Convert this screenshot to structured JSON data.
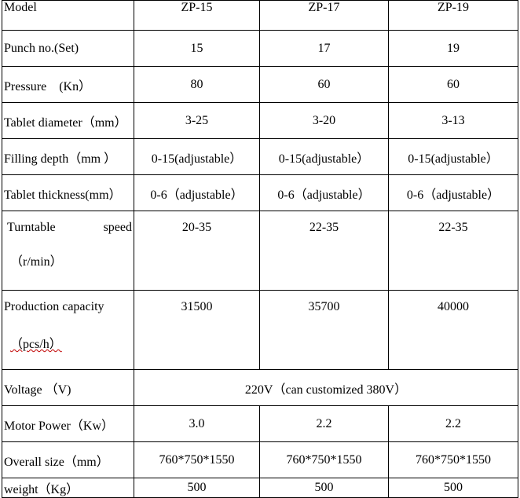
{
  "header": {
    "label": "Model",
    "models": [
      "ZP-15",
      "ZP-17",
      "ZP-19"
    ]
  },
  "rows": {
    "punch": {
      "label": "Punch no.(Set)",
      "values": [
        "15",
        "17",
        "19"
      ]
    },
    "pressure": {
      "label": "Pressure　(Kn）",
      "values": [
        "80",
        "60",
        "60"
      ]
    },
    "diameter": {
      "label": "Tablet diameter（mm）",
      "values": [
        "3-25",
        "3-20",
        "3-13"
      ]
    },
    "filling": {
      "label": "Filling depth（mm ）",
      "values": [
        "0-15(adjustable）",
        "0-15(adjustable）",
        "0-15(adjustable）"
      ]
    },
    "thickness": {
      "label": "Tablet thickness(mm）",
      "values": [
        "0-6（adjustable）",
        "0-6（adjustable）",
        "0-6（adjustable）"
      ]
    },
    "turntable": {
      "label_a": "Turntable",
      "label_b": "speed",
      "label_c": "（r/min）",
      "values": [
        "20-35",
        "22-35",
        "22-35"
      ]
    },
    "capacity": {
      "label": "Production capacity",
      "label_c": "（pcs/h）",
      "values": [
        "31500",
        "35700",
        "40000"
      ]
    },
    "voltage": {
      "label": "Voltage （V)",
      "value": "220V（can customized 380V）"
    },
    "motor": {
      "label": "Motor Power（Kw）",
      "values": [
        "3.0",
        "2.2",
        "2.2"
      ]
    },
    "size": {
      "label": "Overall size（mm）",
      "values": [
        "760*750*1550",
        "760*750*1550",
        "760*750*1550"
      ]
    },
    "weight": {
      "label": "weight（Kg）",
      "values": [
        "500",
        "500",
        "500"
      ]
    }
  }
}
